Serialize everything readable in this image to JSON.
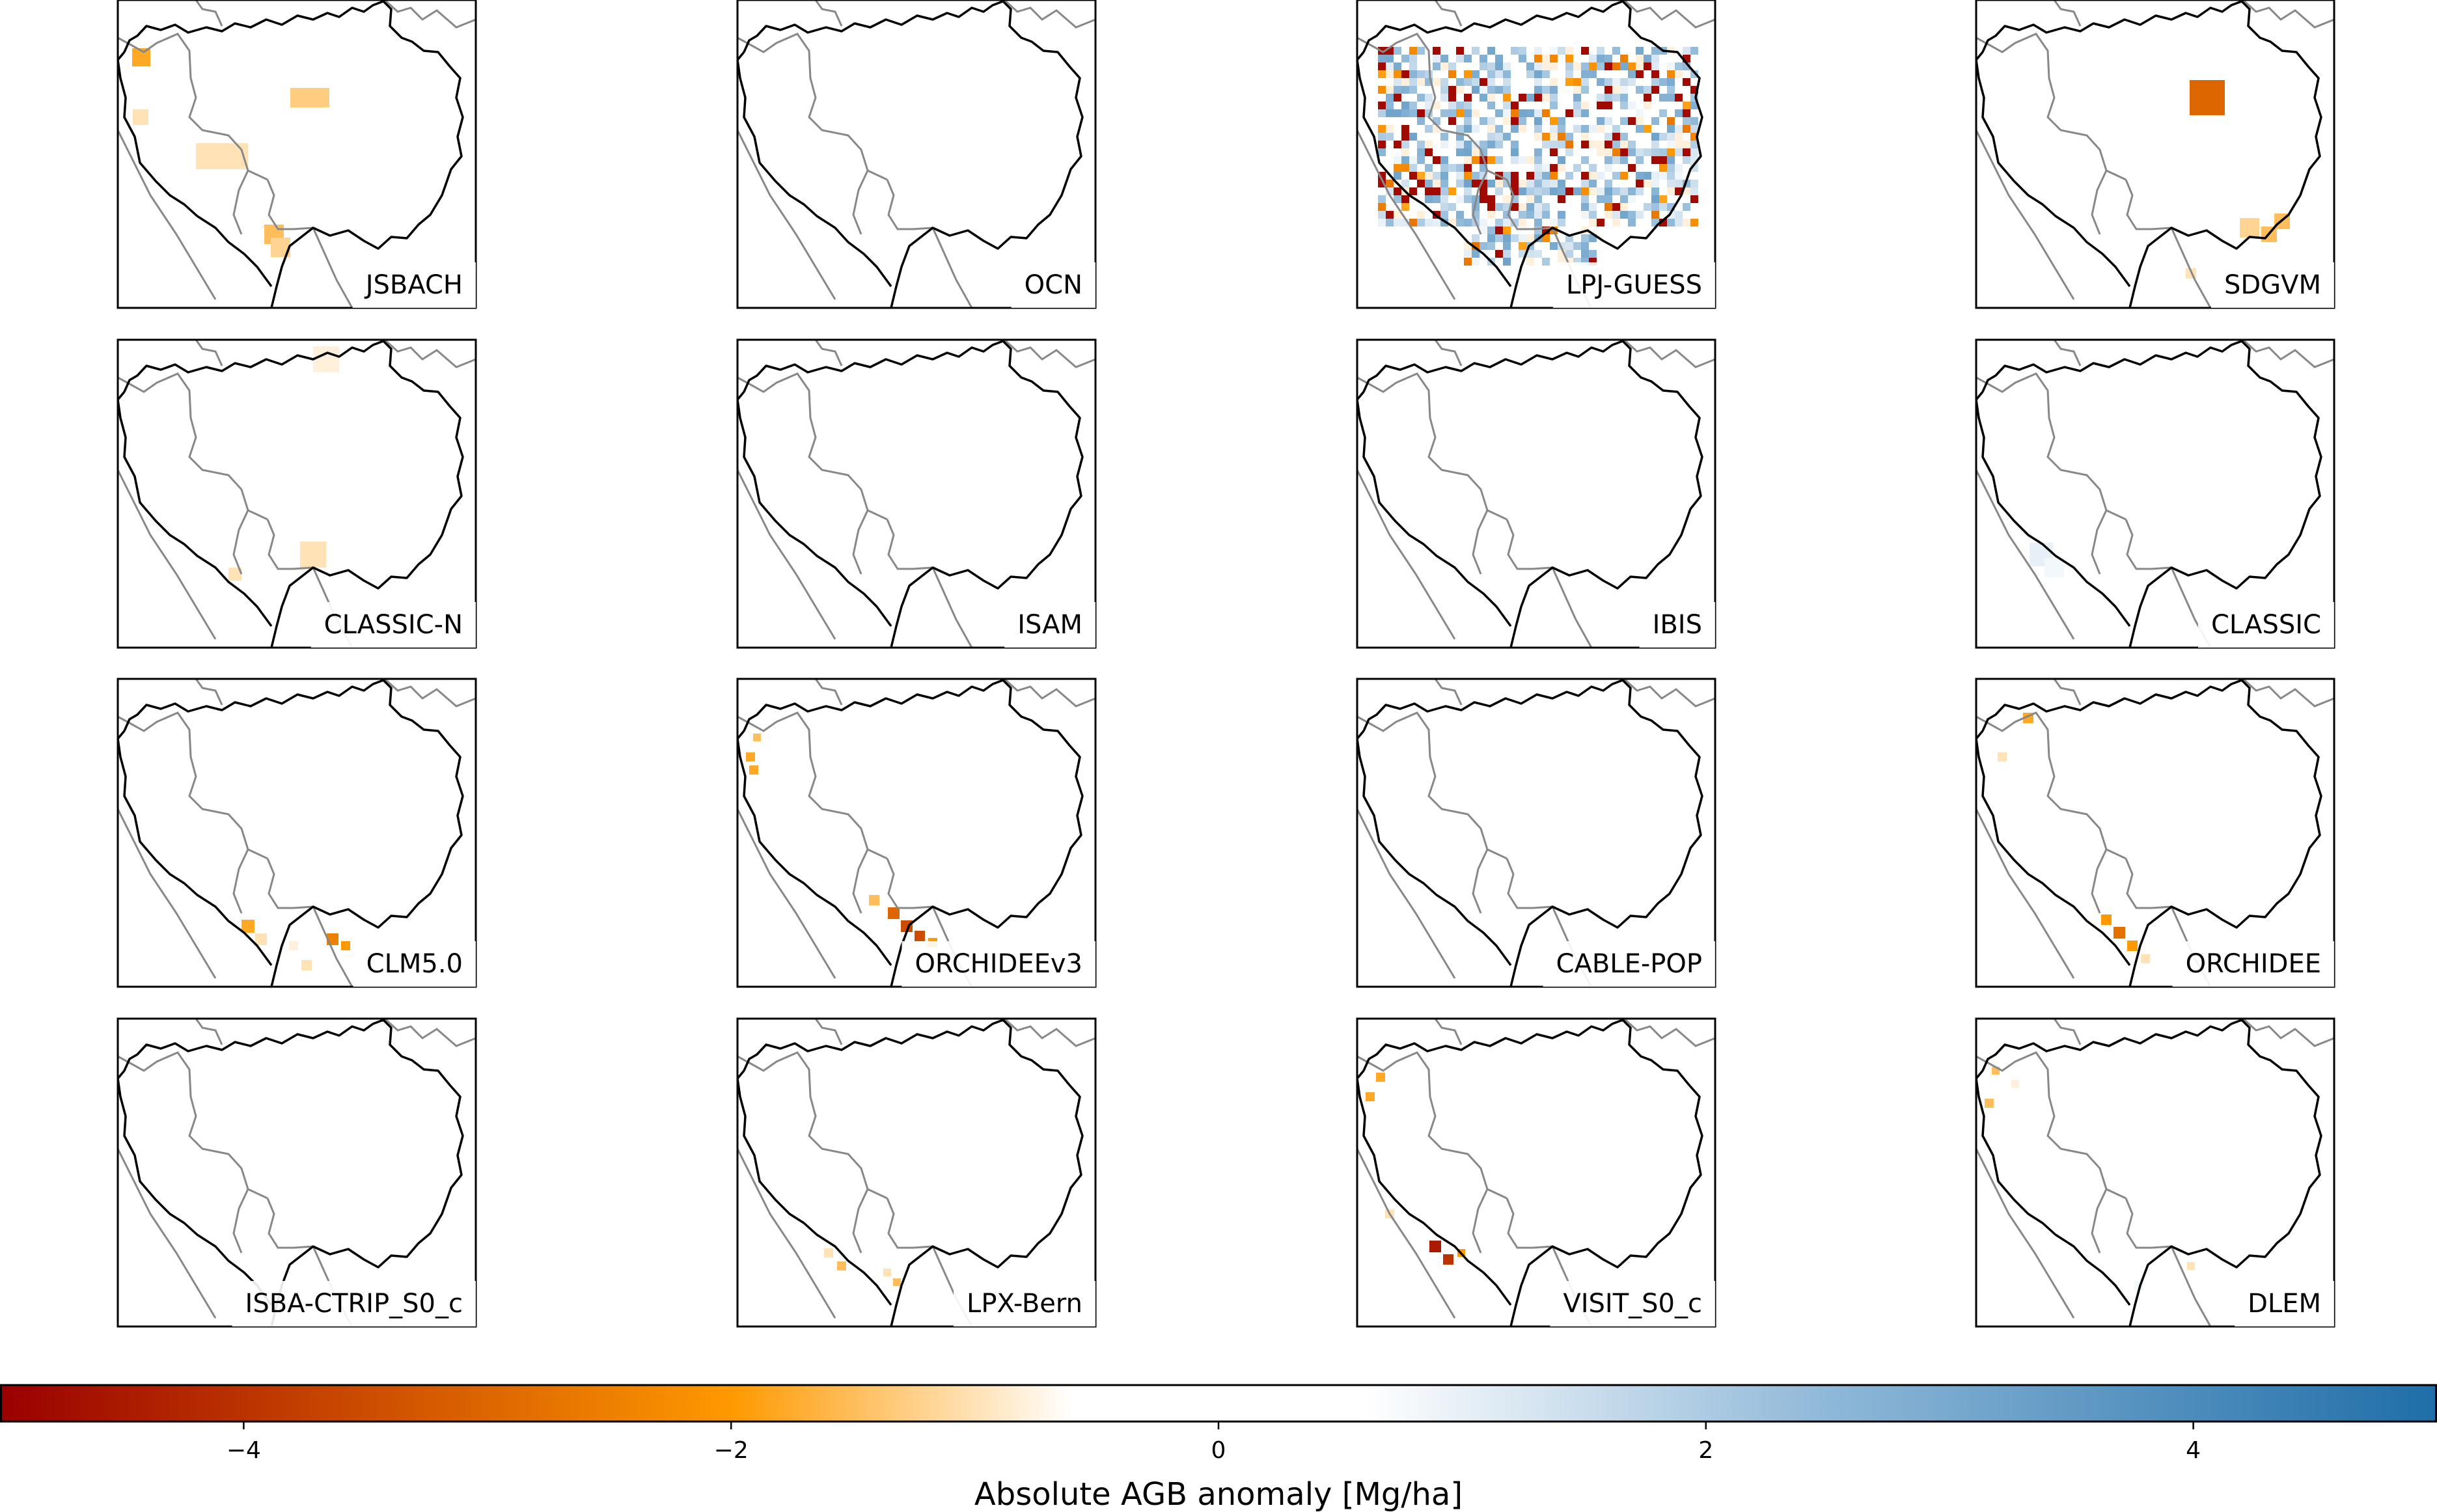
{
  "chart_data": {
    "type": "heatmap",
    "title": "",
    "colorbar": {
      "label": "Absolute AGB anomaly [Mg/ha]",
      "range": [
        -5,
        5
      ],
      "ticks": [
        -4,
        -2,
        0,
        2,
        4
      ],
      "tick_labels": [
        "−4",
        "−2",
        "0",
        "2",
        "4"
      ],
      "colormap_stops": [
        {
          "value": -5,
          "color": "#990000"
        },
        {
          "value": -2,
          "color": "#ff9900"
        },
        {
          "value": -0.6,
          "color": "#ffffff"
        },
        {
          "value": 0.6,
          "color": "#ffffff"
        },
        {
          "value": 2.5,
          "color": "#8fb8d8"
        },
        {
          "value": 5,
          "color": "#1f6ea8"
        }
      ]
    },
    "panels": [
      {
        "name": "JSBACH"
      },
      {
        "name": "OCN"
      },
      {
        "name": "LPJ-GUESS"
      },
      {
        "name": "SDGVM"
      },
      {
        "name": "CLASSIC-N"
      },
      {
        "name": "ISAM"
      },
      {
        "name": "IBIS"
      },
      {
        "name": "CLASSIC"
      },
      {
        "name": "CLM5.0"
      },
      {
        "name": "ORCHIDEEv3"
      },
      {
        "name": "CABLE-POP"
      },
      {
        "name": "ORCHIDEE"
      },
      {
        "name": "ISBA-CTRIP_S0_c"
      },
      {
        "name": "LPX-Bern"
      },
      {
        "name": "VISIT_S0_c"
      },
      {
        "name": "DLEM"
      }
    ],
    "grid": false,
    "legend": "colorbar-bottom"
  }
}
